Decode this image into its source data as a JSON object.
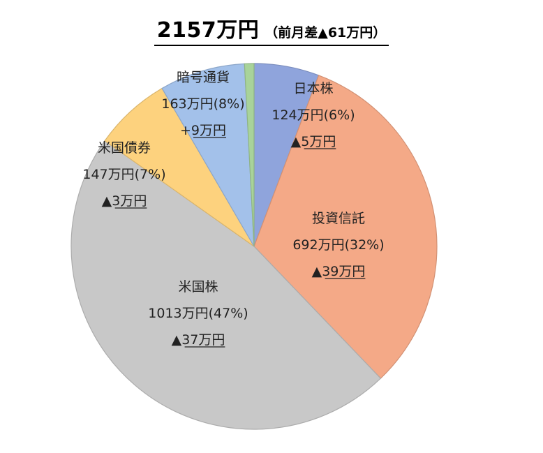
{
  "title": {
    "main": "2157万円",
    "sub": "（前月差▲61万円）"
  },
  "chart_data": {
    "type": "pie",
    "title": "2157万円（前月差▲61万円）",
    "legend": "none",
    "slices": [
      {
        "name": "日本株",
        "value": 124,
        "value_label": "124万円(6%)",
        "delta": "▲5万円",
        "color": "#8FA4DC"
      },
      {
        "name": "投資信託",
        "value": 692,
        "value_label": "692万円(32%)",
        "delta": "▲39万円",
        "color": "#F4A987"
      },
      {
        "name": "米国株",
        "value": 1013,
        "value_label": "1013万円(47%)",
        "delta": "▲37万円",
        "color": "#C8C8C8"
      },
      {
        "name": "米国債券",
        "value": 147,
        "value_label": "147万円(7%)",
        "delta": "▲3万円",
        "color": "#FDD27E"
      },
      {
        "name": "暗号通貨",
        "value": 163,
        "value_label": "163万円(8%)",
        "delta": "+9万円",
        "color": "#A3C1EA"
      },
      {
        "name": "",
        "value": 18,
        "value_label": "",
        "delta": "",
        "color": "#A8D39A"
      }
    ]
  }
}
